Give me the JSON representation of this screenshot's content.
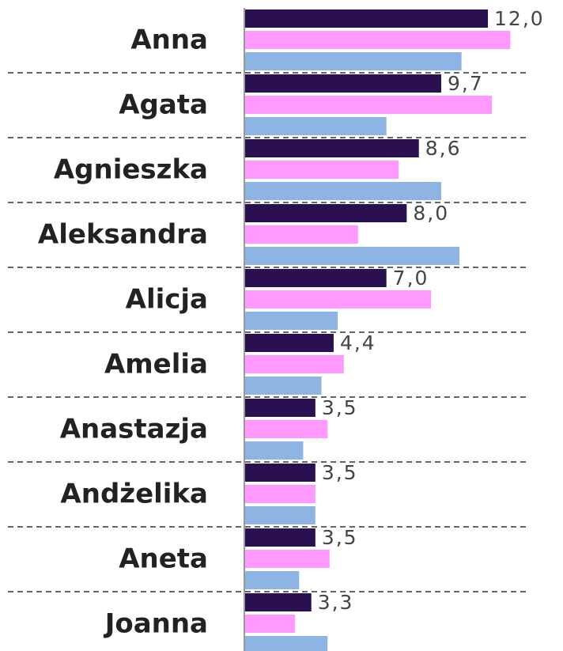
{
  "chart_data": {
    "type": "bar",
    "orientation": "horizontal",
    "categories": [
      "Anna",
      "Agata",
      "Agnieszka",
      "Aleksandra",
      "Alicja",
      "Amelia",
      "Anastazja",
      "Andżelika",
      "Aneta",
      "Joanna"
    ],
    "series": [
      {
        "color": "#2a1050",
        "values": [
          12.0,
          9.7,
          8.6,
          8.0,
          7.0,
          4.4,
          3.5,
          3.5,
          3.5,
          3.3
        ],
        "value_labels": [
          "12,0",
          "9,7",
          "8,6",
          "8,0",
          "7,0",
          "4,4",
          "3,5",
          "3,5",
          "3,5",
          "3,3"
        ]
      },
      {
        "color": "#ff99ff",
        "values": [
          13.1,
          12.2,
          7.6,
          5.6,
          9.2,
          4.9,
          4.1,
          3.5,
          4.2,
          2.5
        ]
      },
      {
        "color": "#8eb4e3",
        "values": [
          10.7,
          7.0,
          9.7,
          10.6,
          4.6,
          3.8,
          2.9,
          3.5,
          2.7,
          4.1
        ]
      }
    ],
    "xlim": [
      0,
      15.7
    ],
    "grid": true
  }
}
